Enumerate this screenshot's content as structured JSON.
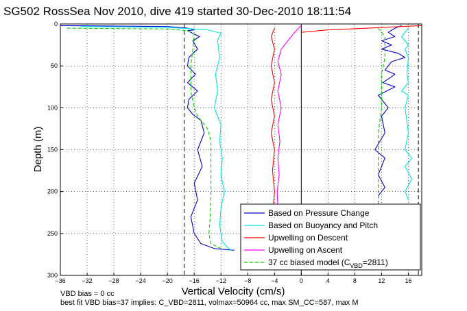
{
  "chart_data": {
    "type": "line",
    "title": "SG502 RossSea Nov 2010, dive 419 started 30-Dec-2010 18:11:54",
    "xlabel": "Vertical Velocity (cm/s)",
    "ylabel": "Depth (m)",
    "xlim": [
      -36,
      18
    ],
    "ylim": [
      300,
      0
    ],
    "y_reversed": true,
    "x_ticks": [
      -36,
      -32,
      -28,
      -24,
      -20,
      -16,
      -12,
      -8,
      -4,
      0,
      4,
      8,
      12,
      16
    ],
    "y_ticks": [
      0,
      50,
      100,
      150,
      200,
      250,
      300
    ],
    "grid": true,
    "legend_position": "bottom-right",
    "reference_lines": {
      "vertical_dashed": [
        -17.5,
        17.5
      ],
      "vertical_solid": [
        0
      ]
    },
    "series": [
      {
        "name": "Based on Pressure Change",
        "color": "#0000cc",
        "style": "solid",
        "segments": [
          [
            [
              -36,
              2
            ],
            [
              -20,
              3
            ],
            [
              -17,
              5
            ],
            [
              -16,
              7
            ],
            [
              -17,
              8
            ],
            [
              -16,
              12
            ],
            [
              -15.2,
              15
            ],
            [
              -16.2,
              20
            ],
            [
              -15.5,
              30
            ],
            [
              -16.8,
              40
            ],
            [
              -17,
              50
            ],
            [
              -15.8,
              60
            ],
            [
              -17,
              70
            ],
            [
              -15.5,
              80
            ],
            [
              -16.8,
              90
            ],
            [
              -17,
              100
            ],
            [
              -16.2,
              108
            ],
            [
              -15,
              115
            ],
            [
              -14.5,
              130
            ],
            [
              -15.5,
              150
            ],
            [
              -14.8,
              170
            ],
            [
              -16,
              190
            ],
            [
              -15.5,
              210
            ],
            [
              -16.5,
              230
            ],
            [
              -16,
              250
            ],
            [
              -15,
              262
            ],
            [
              -13,
              268
            ],
            [
              -10,
              270
            ]
          ],
          [
            [
              15,
              2
            ],
            [
              14,
              5
            ],
            [
              13,
              10
            ],
            [
              14,
              15
            ],
            [
              12,
              20
            ],
            [
              13.5,
              25
            ],
            [
              12,
              30
            ],
            [
              14.5,
              35
            ],
            [
              15.5,
              40
            ],
            [
              13.5,
              45
            ],
            [
              12.5,
              55
            ],
            [
              14,
              60
            ],
            [
              12.2,
              70
            ],
            [
              14,
              75
            ],
            [
              11.5,
              85
            ],
            [
              13,
              100
            ],
            [
              12,
              110
            ],
            [
              12.5,
              130
            ],
            [
              11,
              150
            ],
            [
              12.5,
              160
            ],
            [
              11.5,
              180
            ],
            [
              12.5,
              195
            ],
            [
              11.5,
              205
            ]
          ]
        ]
      },
      {
        "name": "Based on Buoyancy and Pitch",
        "color": "#00e5e5",
        "style": "solid",
        "segments": [
          [
            [
              -33,
              3
            ],
            [
              -20,
              4
            ],
            [
              -14,
              7
            ],
            [
              -13,
              9
            ],
            [
              -12,
              11
            ],
            [
              -12.5,
              20
            ],
            [
              -12.2,
              40
            ],
            [
              -12.8,
              60
            ],
            [
              -12.5,
              80
            ],
            [
              -13,
              100
            ],
            [
              -12.5,
              110
            ],
            [
              -12,
              120
            ],
            [
              -12.2,
              140
            ],
            [
              -11.8,
              160
            ],
            [
              -12,
              180
            ],
            [
              -11.5,
              200
            ],
            [
              -12,
              220
            ],
            [
              -12.2,
              240
            ],
            [
              -11.8,
              260
            ],
            [
              -11,
              267
            ],
            [
              -10.5,
              270
            ]
          ],
          [
            [
              16,
              5
            ],
            [
              15,
              15
            ],
            [
              16,
              25
            ],
            [
              15.5,
              30
            ],
            [
              16,
              40
            ],
            [
              15.8,
              60
            ],
            [
              16,
              70
            ],
            [
              15,
              80
            ],
            [
              16,
              85
            ],
            [
              15.5,
              100
            ],
            [
              16,
              130
            ],
            [
              15.5,
              150
            ],
            [
              16.5,
              160
            ],
            [
              15.5,
              170
            ],
            [
              16.5,
              185
            ],
            [
              15.5,
              200
            ],
            [
              16,
              210
            ]
          ]
        ]
      },
      {
        "name": "Upwelling on Descent",
        "color": "#ff0000",
        "style": "solid",
        "segments": [
          [
            [
              -4,
              5
            ],
            [
              -4.5,
              15
            ],
            [
              -4,
              30
            ],
            [
              -4.5,
              50
            ],
            [
              -4,
              70
            ],
            [
              -4.5,
              90
            ],
            [
              -4,
              110
            ],
            [
              -4.5,
              130
            ],
            [
              -4,
              150
            ],
            [
              -4.3,
              175
            ],
            [
              -4,
              200
            ],
            [
              -4.2,
              220
            ]
          ],
          [
            [
              0,
              10
            ],
            [
              4,
              7
            ],
            [
              10,
              5
            ],
            [
              15,
              3
            ],
            [
              18,
              2
            ]
          ]
        ]
      },
      {
        "name": "Upwelling on Ascent",
        "color": "#ff00ff",
        "style": "solid",
        "segments": [
          [
            [
              0,
              2
            ],
            [
              -1,
              10
            ],
            [
              -2,
              20
            ],
            [
              -3,
              30
            ],
            [
              -3.5,
              45
            ],
            [
              -3,
              60
            ],
            [
              -3.5,
              80
            ],
            [
              -3,
              100
            ],
            [
              -3.5,
              120
            ],
            [
              -3.2,
              140
            ],
            [
              -3.5,
              160
            ],
            [
              -3.3,
              180
            ],
            [
              -3.6,
              200
            ],
            [
              -3.5,
              220
            ]
          ]
        ]
      },
      {
        "name": "37 cc biased model (C_VBD=2811)",
        "color": "#00cc00",
        "style": "dashed",
        "segments": [
          [
            [
              -35,
              5
            ],
            [
              -20,
              6
            ],
            [
              -17,
              8
            ],
            [
              -16,
              12
            ],
            [
              -16.2,
              30
            ],
            [
              -16.5,
              50
            ],
            [
              -16.5,
              80
            ],
            [
              -16,
              100
            ],
            [
              -15.5,
              110
            ],
            [
              -14,
              125
            ],
            [
              -13.5,
              140
            ],
            [
              -13.5,
              180
            ],
            [
              -13.5,
              200
            ],
            [
              -13.6,
              230
            ],
            [
              -13.8,
              250
            ],
            [
              -13.5,
              262
            ],
            [
              -12,
              268
            ]
          ],
          [
            [
              11.5,
              5
            ],
            [
              12.5,
              15
            ],
            [
              12.5,
              40
            ],
            [
              12,
              60
            ],
            [
              12,
              100
            ],
            [
              11.5,
              130
            ],
            [
              11.5,
              160
            ],
            [
              11.5,
              200
            ],
            [
              11.5,
              215
            ]
          ]
        ]
      }
    ]
  },
  "footer": {
    "line1": "VBD bias = 0 cc",
    "line2": "best fit VBD bias=37 implies: C_VBD=2811, volmax=50964 cc, max SM_CC=587, max M"
  },
  "legend": {
    "entries": [
      {
        "label": "Based on Pressure Change",
        "color": "#0000cc",
        "style": "solid"
      },
      {
        "label": "Based on Buoyancy and Pitch",
        "color": "#00e5e5",
        "style": "solid"
      },
      {
        "label": "Upwelling on Descent",
        "color": "#ff0000",
        "style": "solid"
      },
      {
        "label": "Upwelling on Ascent",
        "color": "#ff00ff",
        "style": "solid"
      },
      {
        "label": "37 cc biased model (C",
        "sub": "VBD",
        "tail": "=2811)",
        "color": "#00cc00",
        "style": "dashed"
      }
    ]
  }
}
